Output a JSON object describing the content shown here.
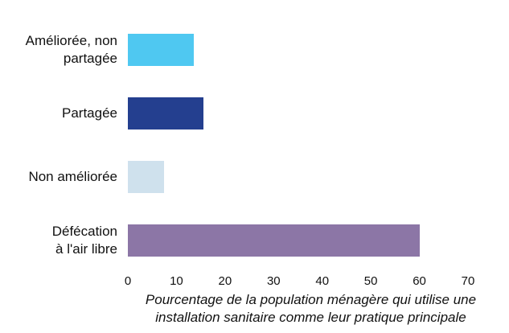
{
  "chart_data": {
    "type": "bar",
    "orientation": "horizontal",
    "categories": [
      "Améliorée, non\npartagée",
      "Partagée",
      "Non améliorée",
      "Défécation\nà l'air libre"
    ],
    "values": [
      13.5,
      15.5,
      7.5,
      60
    ],
    "colors": [
      "#4fc8f1",
      "#243f8f",
      "#cfe1ed",
      "#8c76a6"
    ],
    "xlim": [
      0,
      70
    ],
    "xticks": [
      0,
      10,
      20,
      30,
      40,
      50,
      60,
      70
    ],
    "xlabel": "Pourcentage de la population ménagère qui utilise une\ninstallation sanitaire comme leur pratique principale",
    "grid": false
  }
}
